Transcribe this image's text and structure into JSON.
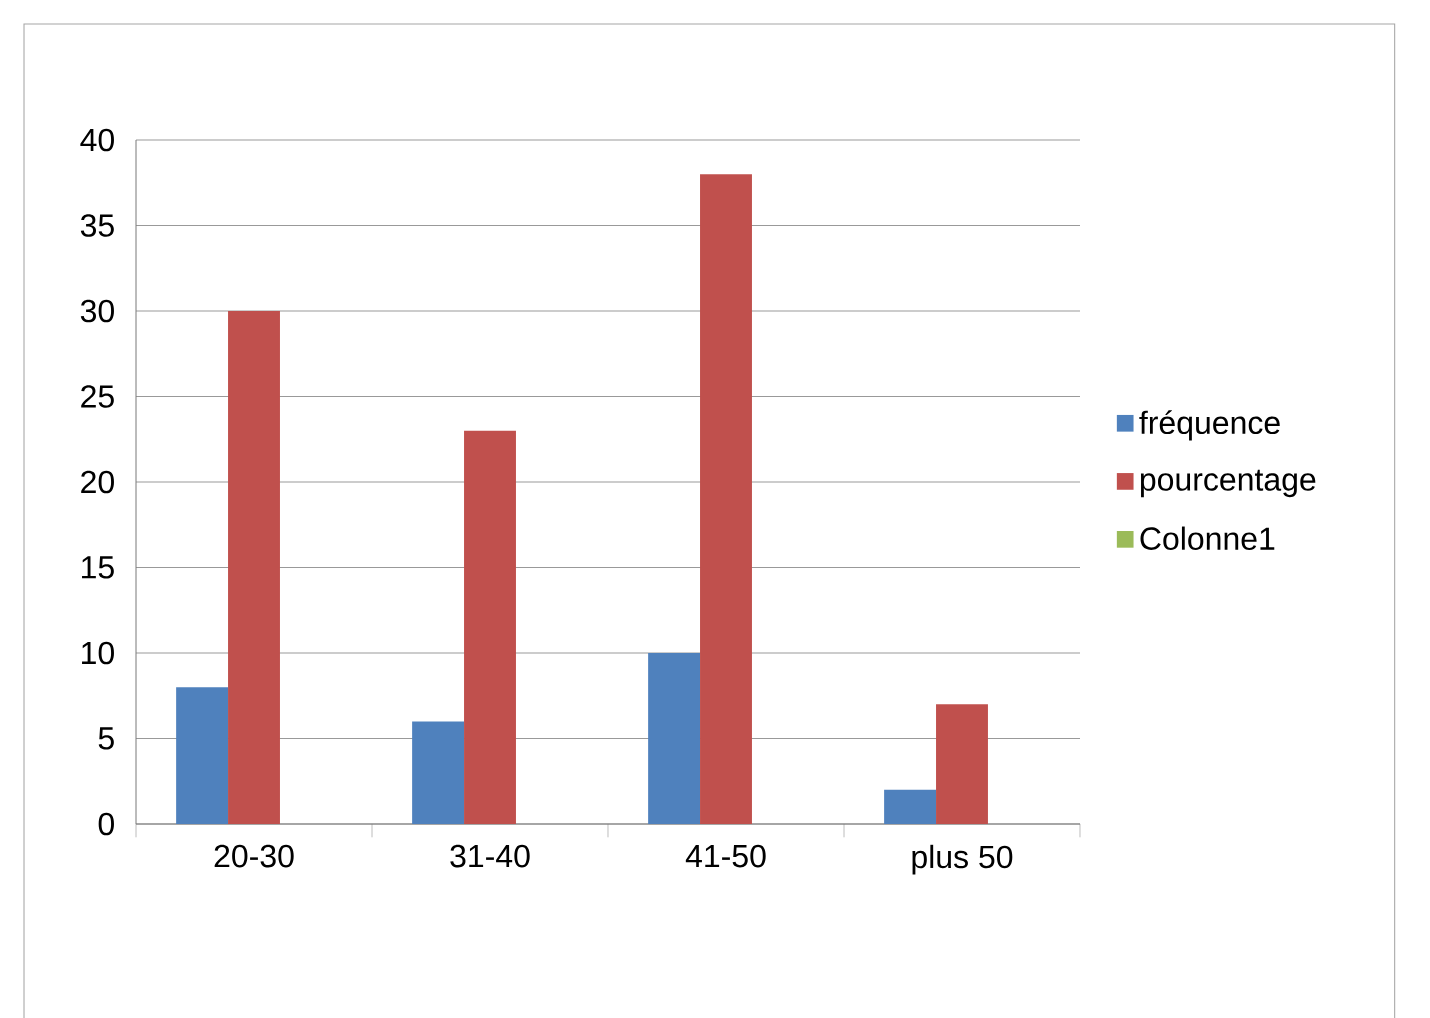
{
  "chart_data": {
    "type": "bar",
    "categories": [
      "20-30",
      "31-40",
      "41-50",
      "plus 50"
    ],
    "series": [
      {
        "name": "fréquence",
        "color": "#4f81bd",
        "values": [
          8,
          6,
          10,
          2
        ]
      },
      {
        "name": "pourcentage",
        "color": "#c0504d",
        "values": [
          30,
          23,
          38,
          7
        ]
      },
      {
        "name": "Colonne1",
        "color": "#9bbb59",
        "values": [
          null,
          null,
          null,
          null
        ]
      }
    ],
    "ylim": [
      0,
      40
    ],
    "yticks": [
      0,
      5,
      10,
      15,
      20,
      25,
      30,
      35,
      40
    ],
    "grid": "y",
    "legend": "right"
  }
}
